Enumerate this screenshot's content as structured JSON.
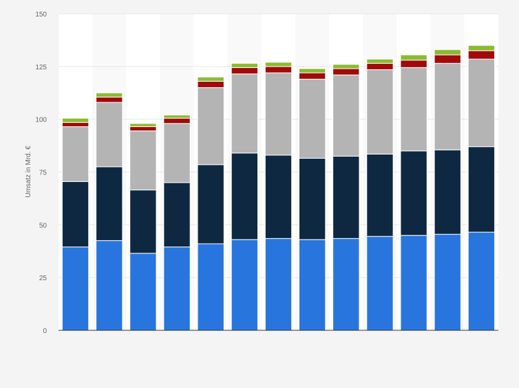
{
  "chart_data": {
    "type": "bar",
    "stacked": true,
    "ylabel": "Umsatz in Mrd. €",
    "xlabel": "",
    "ylim": [
      0,
      150
    ],
    "yticks": [
      0,
      25,
      50,
      75,
      100,
      125,
      150
    ],
    "grid": true,
    "legend": "none",
    "categories": [
      "",
      "",
      "",
      "",
      "",
      "",
      "",
      "",
      "",
      "",
      "",
      "",
      ""
    ],
    "series": [
      {
        "color": "#2876dd",
        "values": [
          39.5,
          42.5,
          36.5,
          39.5,
          41,
          43,
          43.5,
          43,
          43.5,
          44.5,
          45,
          45.5,
          46.5
        ]
      },
      {
        "color": "#0f2841",
        "values": [
          31,
          35,
          30,
          30.5,
          37.5,
          41,
          39.5,
          38.5,
          39,
          39,
          40,
          40,
          40.5
        ]
      },
      {
        "color": "#b4b4b4",
        "values": [
          26,
          30.5,
          28,
          28,
          36.5,
          37.5,
          39,
          37.5,
          38.5,
          40,
          39.5,
          41,
          41.5
        ]
      },
      {
        "color": "#a10a0a",
        "values": [
          2,
          2.5,
          2,
          2.5,
          3,
          3,
          3,
          3,
          3,
          3,
          3.5,
          4,
          4
        ]
      },
      {
        "color": "#8bbb30",
        "values": [
          2,
          2,
          1.5,
          1.5,
          2,
          2,
          2,
          2,
          2,
          2,
          2.5,
          2.5,
          2.5
        ]
      }
    ]
  }
}
